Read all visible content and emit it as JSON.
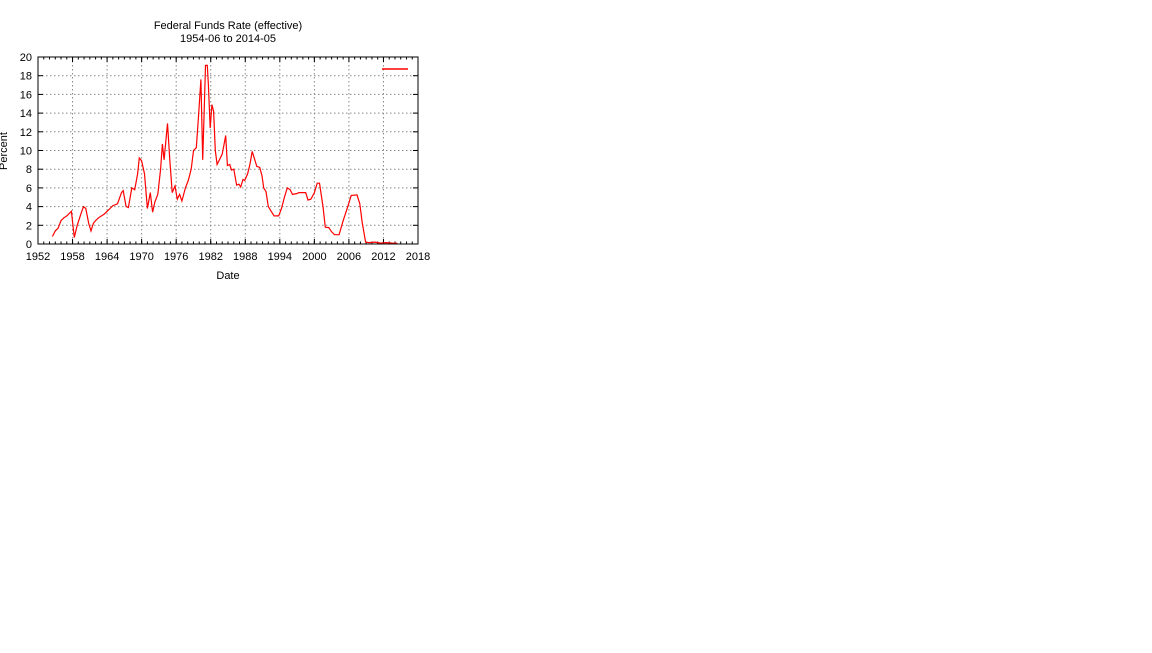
{
  "chart_data": {
    "type": "line",
    "title": "Federal Funds Rate (effective)",
    "subtitle": "1954-06 to 2014-05",
    "xlabel": "Date",
    "ylabel": "Percent",
    "xlim": [
      1952,
      2018
    ],
    "ylim": [
      0,
      20
    ],
    "xticks": [
      "1952",
      "1958",
      "1964",
      "1970",
      "1976",
      "1982",
      "1988",
      "1994",
      "2000",
      "2006",
      "2012",
      "2018"
    ],
    "yticks": [
      "0",
      "2",
      "4",
      "6",
      "8",
      "10",
      "12",
      "14",
      "16",
      "18",
      "20"
    ],
    "grid": true,
    "legend": "top-right",
    "series_color": "#ff0000",
    "series": [
      {
        "x": [
          1954.5,
          1955,
          1955.5,
          1956,
          1956.5,
          1957,
          1957.8,
          1958.3,
          1958.8,
          1959.5,
          1959.9,
          1960.3,
          1960.8,
          1961.2,
          1961.6,
          1962,
          1962.5,
          1963.5,
          1964,
          1965,
          1965.8,
          1966.5,
          1966.8,
          1967.3,
          1967.7,
          1968.3,
          1968.8,
          1969.3,
          1969.6,
          1970,
          1970.5,
          1971,
          1971.5,
          1971.9,
          1972.3,
          1972.8,
          1973.3,
          1973.6,
          1973.9,
          1974.5,
          1974.9,
          1975.3,
          1975.8,
          1976.2,
          1976.6,
          1977,
          1977.6,
          1978.1,
          1978.6,
          1979,
          1979.5,
          1979.9,
          1980.3,
          1980.6,
          1980.9,
          1981.1,
          1981.4,
          1981.6,
          1981.9,
          1982.2,
          1982.5,
          1982.8,
          1983.1,
          1983.5,
          1984,
          1984.6,
          1984.9,
          1985.3,
          1985.6,
          1986,
          1986.5,
          1986.9,
          1987.2,
          1987.6,
          1987.9,
          1988.4,
          1988.8,
          1989.2,
          1989.7,
          1990,
          1990.5,
          1990.9,
          1991.2,
          1991.6,
          1992,
          1992.5,
          1993,
          1993.8,
          1994.3,
          1994.8,
          1995.3,
          1995.8,
          1996.2,
          1997,
          1997.3,
          1998.5,
          1998.9,
          1999.4,
          2000,
          2000.5,
          2000.9,
          2001.5,
          2001.9,
          2002.5,
          2003,
          2003.5,
          2004.3,
          2005,
          2005.8,
          2006.4,
          2007.4,
          2007.9,
          2008.3,
          2008.9,
          2009.5,
          2010.5,
          2011.5,
          2012.5,
          2013.5,
          2014.4
        ],
        "y": [
          0.8,
          1.4,
          1.7,
          2.5,
          2.8,
          3.0,
          3.5,
          0.7,
          2.0,
          3.3,
          4.0,
          3.8,
          2.2,
          1.4,
          2.2,
          2.5,
          2.8,
          3.2,
          3.5,
          4.1,
          4.3,
          5.5,
          5.7,
          4.0,
          3.9,
          6.0,
          5.8,
          7.5,
          9.2,
          8.9,
          7.5,
          3.8,
          5.5,
          3.4,
          4.5,
          5.3,
          8.0,
          10.7,
          9.0,
          12.9,
          9.0,
          5.5,
          6.2,
          4.8,
          5.3,
          4.6,
          6.0,
          6.8,
          8.0,
          10.0,
          10.3,
          13.8,
          17.6,
          9.0,
          15.0,
          19.1,
          19.1,
          17.0,
          12.4,
          14.9,
          14.2,
          10.0,
          8.5,
          9.0,
          9.6,
          11.6,
          8.4,
          8.5,
          7.9,
          8.0,
          6.3,
          6.4,
          6.1,
          6.9,
          6.8,
          7.5,
          8.5,
          9.9,
          8.9,
          8.3,
          8.2,
          7.3,
          6.0,
          5.6,
          4.0,
          3.5,
          3.0,
          3.0,
          3.8,
          5.0,
          6.0,
          5.8,
          5.3,
          5.4,
          5.5,
          5.5,
          4.7,
          4.8,
          5.5,
          6.5,
          6.5,
          4.0,
          1.8,
          1.75,
          1.3,
          1.0,
          1.0,
          2.5,
          4.0,
          5.2,
          5.25,
          4.3,
          2.3,
          0.2,
          0.15,
          0.2,
          0.1,
          0.15,
          0.1,
          0.09
        ]
      }
    ]
  }
}
